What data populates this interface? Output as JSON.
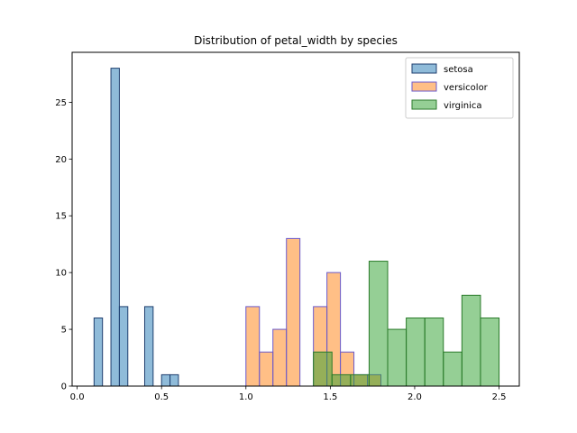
{
  "chart_data": {
    "type": "histogram",
    "title": "Distribution of petal_width by species",
    "xlabel": "",
    "ylabel": "",
    "xlim": [
      -0.03,
      2.62
    ],
    "ylim": [
      0,
      29.4
    ],
    "xticks": [
      "0.0",
      "0.5",
      "1.0",
      "1.5",
      "2.0",
      "2.5"
    ],
    "yticks": [
      "0",
      "5",
      "10",
      "15",
      "20",
      "25"
    ],
    "grid": false,
    "legend_position": "top-right",
    "series": [
      {
        "name": "setosa",
        "fill": "#1f77b4",
        "edge": "#1f3f6f",
        "bins": [
          [
            0.1,
            0.15,
            6
          ],
          [
            0.15,
            0.2,
            0
          ],
          [
            0.2,
            0.25,
            28
          ],
          [
            0.25,
            0.3,
            7
          ],
          [
            0.3,
            0.35,
            0
          ],
          [
            0.35,
            0.4,
            0
          ],
          [
            0.4,
            0.45,
            7
          ],
          [
            0.45,
            0.5,
            0
          ],
          [
            0.5,
            0.55,
            1
          ],
          [
            0.55,
            0.6,
            1
          ]
        ]
      },
      {
        "name": "versicolor",
        "fill": "#ff7f0e",
        "edge": "#6a5acd",
        "bins": [
          [
            1.0,
            1.08,
            7
          ],
          [
            1.08,
            1.16,
            3
          ],
          [
            1.16,
            1.24,
            5
          ],
          [
            1.24,
            1.32,
            13
          ],
          [
            1.32,
            1.4,
            0
          ],
          [
            1.4,
            1.48,
            7
          ],
          [
            1.48,
            1.56,
            10
          ],
          [
            1.56,
            1.64,
            3
          ],
          [
            1.64,
            1.72,
            1
          ],
          [
            1.72,
            1.8,
            1
          ]
        ]
      },
      {
        "name": "virginica",
        "fill": "#2ca02c",
        "edge": "#2a7a2a",
        "bins": [
          [
            1.4,
            1.51,
            3
          ],
          [
            1.51,
            1.62,
            1
          ],
          [
            1.62,
            1.73,
            1
          ],
          [
            1.73,
            1.84,
            11
          ],
          [
            1.84,
            1.95,
            5
          ],
          [
            1.95,
            2.06,
            6
          ],
          [
            2.06,
            2.17,
            6
          ],
          [
            2.17,
            2.28,
            3
          ],
          [
            2.28,
            2.39,
            8
          ],
          [
            2.39,
            2.5,
            6
          ]
        ]
      }
    ]
  }
}
